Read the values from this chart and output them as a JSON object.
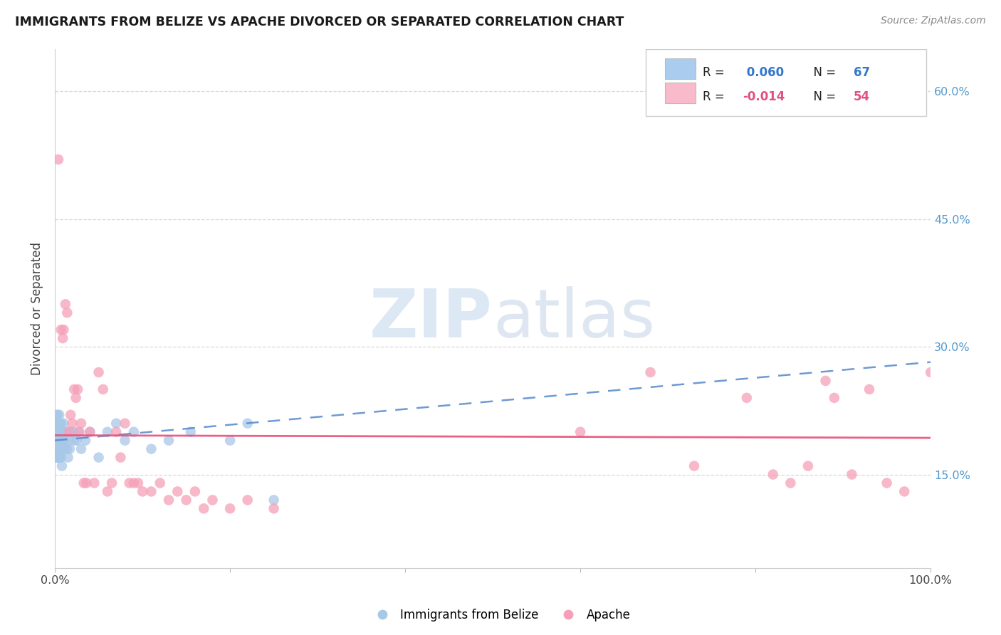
{
  "title": "IMMIGRANTS FROM BELIZE VS APACHE DIVORCED OR SEPARATED CORRELATION CHART",
  "source": "Source: ZipAtlas.com",
  "ylabel": "Divorced or Separated",
  "xlim": [
    0.0,
    1.0
  ],
  "ylim": [
    0.04,
    0.65
  ],
  "y_ticks": [
    0.15,
    0.3,
    0.45,
    0.6
  ],
  "y_tick_labels_right": [
    "15.0%",
    "30.0%",
    "45.0%",
    "60.0%"
  ],
  "x_ticks": [
    0.0,
    0.2,
    0.4,
    0.6,
    0.8,
    1.0
  ],
  "x_tick_labels": [
    "0.0%",
    "",
    "",
    "",
    "",
    "100.0%"
  ],
  "blue_color": "#a8c8e8",
  "pink_color": "#f5a0b8",
  "blue_line_color": "#5588cc",
  "pink_line_color": "#e8507a",
  "blue_legend_color": "#aaccee",
  "pink_legend_color": "#f9bbcc",
  "right_tick_color": "#5599cc",
  "watermark_color": "#dde8f5",
  "belize_x": [
    0.001,
    0.001,
    0.001,
    0.001,
    0.001,
    0.002,
    0.002,
    0.002,
    0.002,
    0.002,
    0.003,
    0.003,
    0.003,
    0.003,
    0.003,
    0.003,
    0.004,
    0.004,
    0.004,
    0.004,
    0.004,
    0.005,
    0.005,
    0.005,
    0.005,
    0.005,
    0.006,
    0.006,
    0.006,
    0.006,
    0.007,
    0.007,
    0.007,
    0.008,
    0.008,
    0.008,
    0.008,
    0.009,
    0.009,
    0.01,
    0.01,
    0.011,
    0.012,
    0.013,
    0.014,
    0.015,
    0.016,
    0.017,
    0.018,
    0.02,
    0.022,
    0.025,
    0.027,
    0.03,
    0.035,
    0.04,
    0.05,
    0.06,
    0.07,
    0.08,
    0.09,
    0.11,
    0.13,
    0.155,
    0.2,
    0.22,
    0.25
  ],
  "belize_y": [
    0.22,
    0.2,
    0.19,
    0.18,
    0.17,
    0.21,
    0.2,
    0.19,
    0.18,
    0.17,
    0.22,
    0.21,
    0.2,
    0.19,
    0.18,
    0.17,
    0.21,
    0.2,
    0.19,
    0.18,
    0.17,
    0.22,
    0.2,
    0.19,
    0.18,
    0.17,
    0.21,
    0.19,
    0.18,
    0.17,
    0.21,
    0.19,
    0.17,
    0.2,
    0.19,
    0.18,
    0.16,
    0.2,
    0.18,
    0.21,
    0.19,
    0.19,
    0.18,
    0.2,
    0.18,
    0.17,
    0.19,
    0.18,
    0.2,
    0.2,
    0.19,
    0.19,
    0.2,
    0.18,
    0.19,
    0.2,
    0.17,
    0.2,
    0.21,
    0.19,
    0.2,
    0.18,
    0.19,
    0.2,
    0.19,
    0.21,
    0.12
  ],
  "apache_x": [
    0.004,
    0.007,
    0.009,
    0.01,
    0.012,
    0.014,
    0.016,
    0.018,
    0.02,
    0.022,
    0.024,
    0.026,
    0.028,
    0.03,
    0.033,
    0.036,
    0.04,
    0.045,
    0.05,
    0.055,
    0.06,
    0.065,
    0.07,
    0.075,
    0.08,
    0.085,
    0.09,
    0.095,
    0.1,
    0.11,
    0.12,
    0.13,
    0.14,
    0.15,
    0.16,
    0.17,
    0.18,
    0.2,
    0.22,
    0.25,
    0.6,
    0.68,
    0.73,
    0.79,
    0.82,
    0.84,
    0.86,
    0.88,
    0.89,
    0.91,
    0.93,
    0.95,
    0.97,
    1.0
  ],
  "apache_y": [
    0.52,
    0.32,
    0.31,
    0.32,
    0.35,
    0.34,
    0.2,
    0.22,
    0.21,
    0.25,
    0.24,
    0.25,
    0.2,
    0.21,
    0.14,
    0.14,
    0.2,
    0.14,
    0.27,
    0.25,
    0.13,
    0.14,
    0.2,
    0.17,
    0.21,
    0.14,
    0.14,
    0.14,
    0.13,
    0.13,
    0.14,
    0.12,
    0.13,
    0.12,
    0.13,
    0.11,
    0.12,
    0.11,
    0.12,
    0.11,
    0.2,
    0.27,
    0.16,
    0.24,
    0.15,
    0.14,
    0.16,
    0.26,
    0.24,
    0.15,
    0.25,
    0.14,
    0.13,
    0.27
  ],
  "blue_trend_x": [
    0.0,
    1.0
  ],
  "blue_trend_y": [
    0.19,
    0.282
  ],
  "pink_trend_x": [
    0.0,
    1.0
  ],
  "pink_trend_y": [
    0.196,
    0.193
  ]
}
